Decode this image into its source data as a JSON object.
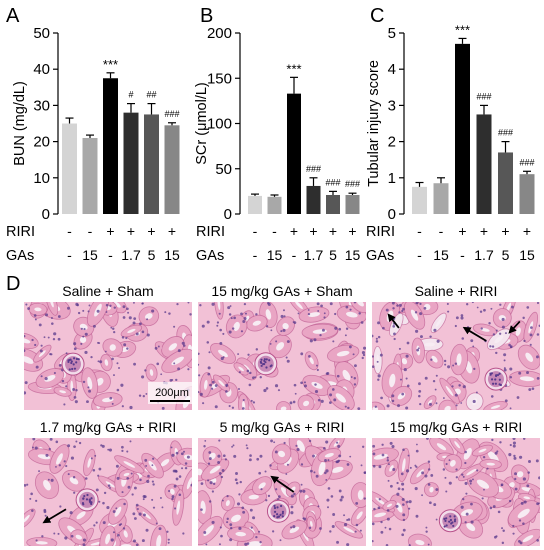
{
  "colors": {
    "bars": [
      "#d4d4d4",
      "#a8a8a8",
      "#000000",
      "#2e2e2e",
      "#575757",
      "#878787"
    ],
    "tissue_base": "#f2c1d6",
    "tissue_stroke": "#b8528b",
    "nuclei": "#5a3a8c",
    "lumen": "#f7ecf3"
  },
  "chart_data": [
    {
      "type": "bar",
      "panel_label": "A",
      "ylabel": "BUN (mg/dL)",
      "ylim": [
        0,
        50
      ],
      "yticks": [
        "0",
        "10",
        "20",
        "30",
        "40",
        "50"
      ],
      "categories": [
        "Saline + Sham",
        "15 mg/kg GAs + Sham",
        "Saline + RIRI",
        "1.7 mg/kg GAs + RIRI",
        "5 mg/kg GAs + RIRI",
        "15 mg/kg GAs + RIRI"
      ],
      "values": [
        25.0,
        21.0,
        37.5,
        28.0,
        27.5,
        24.5
      ],
      "errors": [
        1.5,
        0.8,
        1.5,
        2.5,
        3.0,
        0.7
      ],
      "annotations": [
        "",
        "",
        "***",
        "#",
        "##",
        "###"
      ],
      "row_labels": [
        "RIRI",
        "GAs"
      ],
      "riri_row": [
        "-",
        "-",
        "+",
        "+",
        "+",
        "+"
      ],
      "gas_row": [
        "-",
        "15",
        "-",
        "1.7",
        "5",
        "15"
      ]
    },
    {
      "type": "bar",
      "panel_label": "B",
      "ylabel": "SCr (μmol/L)",
      "ylim": [
        0,
        200
      ],
      "yticks": [
        "0",
        "50",
        "100",
        "150",
        "200"
      ],
      "categories": [
        "Saline + Sham",
        "15 mg/kg GAs + Sham",
        "Saline + RIRI",
        "1.7 mg/kg GAs + RIRI",
        "5 mg/kg GAs + RIRI",
        "15 mg/kg GAs + RIRI"
      ],
      "values": [
        20,
        19,
        133,
        31,
        21,
        21
      ],
      "errors": [
        2,
        2,
        18,
        9,
        4,
        2
      ],
      "annotations": [
        "",
        "",
        "***",
        "###",
        "###",
        "###"
      ],
      "row_labels": [
        "RIRI",
        "GAs"
      ],
      "riri_row": [
        "-",
        "-",
        "+",
        "+",
        "+",
        "+"
      ],
      "gas_row": [
        "-",
        "15",
        "-",
        "1.7",
        "5",
        "15"
      ]
    },
    {
      "type": "bar",
      "panel_label": "C",
      "ylabel": "Tubular injury score",
      "ylim": [
        0,
        5
      ],
      "yticks": [
        "0",
        "1",
        "2",
        "3",
        "4",
        "5"
      ],
      "categories": [
        "Saline + Sham",
        "15 mg/kg GAs + Sham",
        "Saline + RIRI",
        "1.7 mg/kg GAs + RIRI",
        "5 mg/kg GAs + RIRI",
        "15 mg/kg GAs + RIRI"
      ],
      "values": [
        0.75,
        0.85,
        4.7,
        2.75,
        1.7,
        1.1
      ],
      "errors": [
        0.12,
        0.15,
        0.15,
        0.25,
        0.3,
        0.08
      ],
      "annotations": [
        "",
        "",
        "***",
        "###",
        "###",
        "###"
      ],
      "row_labels": [
        "RIRI",
        "GAs"
      ],
      "riri_row": [
        "-",
        "-",
        "+",
        "+",
        "+",
        "+"
      ],
      "gas_row": [
        "-",
        "15",
        "-",
        "1.7",
        "5",
        "15"
      ]
    }
  ],
  "histology": {
    "panel_label": "D",
    "scale_bar": "200μm",
    "panels": [
      {
        "title": "Saline + Sham",
        "arrows": []
      },
      {
        "title": "15 mg/kg GAs + Sham",
        "arrows": []
      },
      {
        "title": "Saline + RIRI",
        "arrows": [
          [
            0.16,
            0.24,
            0.1,
            0.12
          ],
          [
            0.68,
            0.36,
            0.55,
            0.24
          ],
          [
            0.88,
            0.18,
            0.82,
            0.28
          ]
        ]
      },
      {
        "title": "1.7 mg/kg GAs + RIRI",
        "arrows": [
          [
            0.25,
            0.66,
            0.12,
            0.78
          ]
        ]
      },
      {
        "title": "5 mg/kg GAs + RIRI",
        "arrows": [
          [
            0.57,
            0.5,
            0.44,
            0.36
          ]
        ]
      },
      {
        "title": "15 mg/kg GAs + RIRI",
        "arrows": []
      }
    ]
  }
}
